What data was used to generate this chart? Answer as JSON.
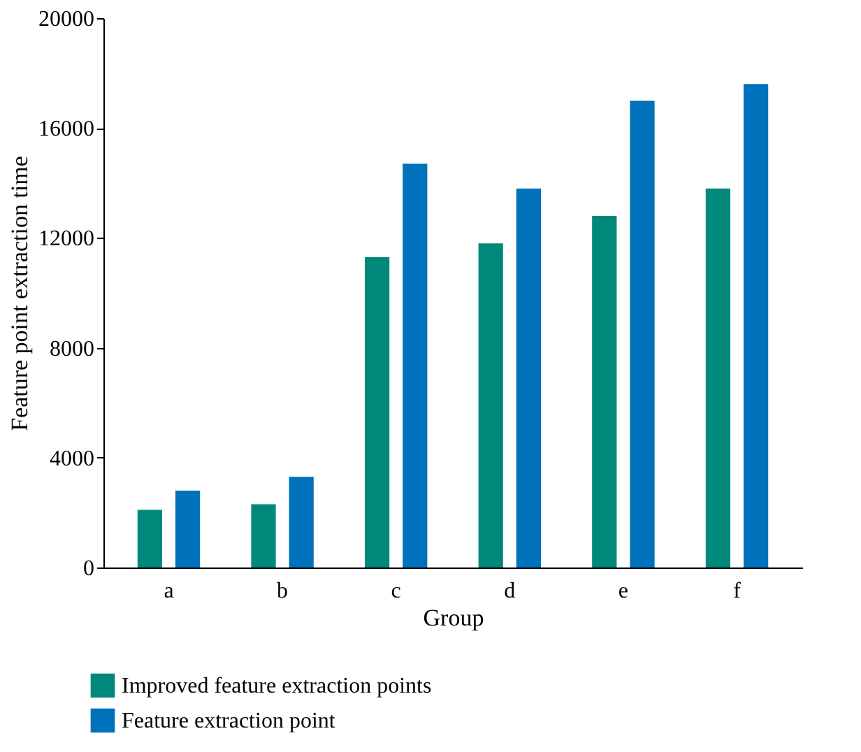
{
  "chart_data": {
    "type": "bar",
    "xlabel": "Group",
    "ylabel": "Feature point extraction time",
    "categories": [
      "a",
      "b",
      "c",
      "d",
      "e",
      "f"
    ],
    "series": [
      {
        "name": "Improved feature extraction points",
        "color": "#00897b",
        "values": [
          2100,
          2300,
          11300,
          11800,
          12800,
          13800
        ]
      },
      {
        "name": "Feature extraction point",
        "color": "#0072bc",
        "values": [
          2800,
          3300,
          14700,
          13800,
          17000,
          17600
        ]
      }
    ],
    "ylim": [
      0,
      20000
    ],
    "yticks": [
      0,
      4000,
      8000,
      12000,
      16000,
      20000
    ],
    "grid": false,
    "legend": "bottom"
  }
}
